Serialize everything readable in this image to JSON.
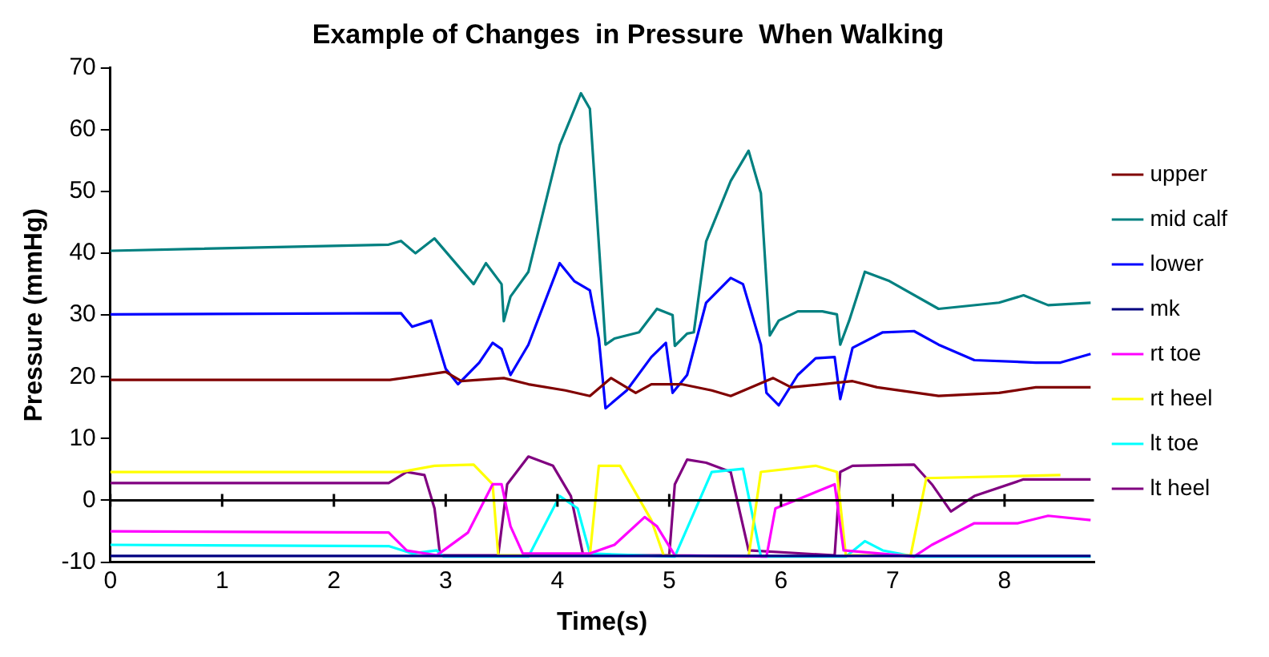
{
  "chart_data": {
    "type": "line",
    "title": "Example of Changes  in Pressure  When Walking",
    "xlabel": "Time(s)",
    "ylabel": "Pressure (mmHg)",
    "xlim": [
      0,
      8.8
    ],
    "xticks": [
      0,
      1,
      2,
      3,
      4,
      5,
      6,
      7,
      8
    ],
    "ylim": [
      -10,
      70
    ],
    "yticks": [
      -10,
      0,
      10,
      20,
      30,
      40,
      50,
      60,
      70
    ],
    "grid": false,
    "legend": "right",
    "marker": "none",
    "line_style": "solid",
    "ref_lines": [
      {
        "axis": "y",
        "value": 0
      }
    ],
    "series": [
      {
        "name": "upper",
        "color": "#800000",
        "x": [
          0,
          2.5,
          3.0,
          3.14,
          3.52,
          3.74,
          4.07,
          4.29,
          4.48,
          4.7,
          4.84,
          5.11,
          5.38,
          5.55,
          5.93,
          6.09,
          6.64,
          6.86,
          7.41,
          7.95,
          8.28,
          8.77
        ],
        "values": [
          19.5,
          19.5,
          20.8,
          19.3,
          19.8,
          18.8,
          17.8,
          16.9,
          19.8,
          17.4,
          18.8,
          18.8,
          17.8,
          16.9,
          19.8,
          18.3,
          19.3,
          18.3,
          16.9,
          17.4,
          18.3,
          18.3
        ]
      },
      {
        "name": "mid calf",
        "color": "#008080",
        "x": [
          0,
          2.49,
          2.6,
          2.73,
          2.9,
          3.25,
          3.36,
          3.5,
          3.52,
          3.58,
          3.74,
          4.02,
          4.21,
          4.29,
          4.43,
          4.51,
          4.73,
          4.89,
          5.03,
          5.05,
          5.16,
          5.22,
          5.33,
          5.55,
          5.71,
          5.82,
          5.9,
          5.98,
          6.15,
          6.37,
          6.5,
          6.53,
          6.61,
          6.75,
          6.97,
          7.41,
          7.95,
          8.17,
          8.39,
          8.77
        ],
        "values": [
          40.4,
          41.4,
          42,
          40,
          42.4,
          35,
          38.4,
          35,
          29,
          33,
          37,
          57.5,
          65.9,
          63.4,
          25.2,
          26.2,
          27.2,
          31,
          30,
          25,
          27,
          27.2,
          41.9,
          51.7,
          56.6,
          49.7,
          26.7,
          29.1,
          30.6,
          30.6,
          30.1,
          25.2,
          29.1,
          37,
          35.5,
          31,
          32,
          33.2,
          31.6,
          32
        ]
      },
      {
        "name": "lower",
        "color": "#0000ff",
        "x": [
          0,
          2.6,
          2.7,
          2.87,
          3.0,
          3.11,
          3.3,
          3.42,
          3.5,
          3.58,
          3.74,
          4.02,
          4.15,
          4.29,
          4.37,
          4.43,
          4.62,
          4.84,
          4.97,
          5.03,
          5.16,
          5.33,
          5.55,
          5.66,
          5.82,
          5.87,
          5.98,
          6.15,
          6.31,
          6.48,
          6.53,
          6.64,
          6.91,
          7.19,
          7.41,
          7.73,
          8.28,
          8.5,
          8.77
        ],
        "values": [
          30.1,
          30.3,
          28.1,
          29.1,
          21.3,
          18.8,
          22.3,
          25.5,
          24.5,
          20.3,
          25.2,
          38.4,
          35.5,
          34,
          26.2,
          14.9,
          17.8,
          23.2,
          25.5,
          17.4,
          20.3,
          32,
          36,
          35,
          25.2,
          17.4,
          15.4,
          20.3,
          23,
          23.2,
          16.4,
          24.7,
          27.2,
          27.4,
          25.2,
          22.7,
          22.3,
          22.3,
          23.7
        ]
      },
      {
        "name": "mk",
        "color": "#000080",
        "x": [
          0,
          8.77
        ],
        "values": [
          -9,
          -9
        ]
      },
      {
        "name": "rt toe",
        "color": "#ff00ff",
        "x": [
          0,
          2.49,
          2.65,
          2.92,
          3.2,
          3.42,
          3.5,
          3.58,
          3.69,
          4.29,
          4.51,
          4.78,
          4.89,
          5.05,
          5.87,
          5.95,
          6.09,
          6.48,
          6.56,
          7.19,
          7.35,
          7.73,
          8.12,
          8.39,
          8.77
        ],
        "values": [
          -5,
          -5.2,
          -8.1,
          -8.9,
          -5.2,
          2.6,
          2.6,
          -4.2,
          -8.6,
          -8.6,
          -7.2,
          -2.7,
          -4.2,
          -8.9,
          -9.1,
          -1.3,
          -0.3,
          2.6,
          -8.1,
          -9.1,
          -7.2,
          -3.7,
          -3.7,
          -2.5,
          -3.2
        ]
      },
      {
        "name": "rt heel",
        "color": "#ffff00",
        "x": [
          0,
          2.6,
          2.9,
          3.25,
          3.42,
          3.47,
          4.29,
          4.37,
          4.56,
          4.84,
          4.95,
          5.71,
          5.82,
          6.31,
          6.5,
          6.58,
          7.16,
          7.3,
          8.5
        ],
        "values": [
          4.6,
          4.6,
          5.6,
          5.8,
          2.6,
          -8.9,
          -8.9,
          5.6,
          5.6,
          -3.2,
          -8.9,
          -9.1,
          4.6,
          5.6,
          4.6,
          -8.9,
          -8.9,
          3.6,
          4.1
        ]
      },
      {
        "name": "lt toe",
        "color": "#00ffff",
        "x": [
          0,
          2.49,
          2.7,
          2.92,
          2.98,
          3.74,
          4.02,
          4.18,
          4.29,
          5.05,
          5.38,
          5.66,
          5.82,
          6.58,
          6.75,
          6.91,
          7.19,
          8.77
        ],
        "values": [
          -7.2,
          -7.4,
          -8.6,
          -8.1,
          -9.1,
          -9.1,
          0.7,
          -1.3,
          -8.6,
          -9.1,
          4.6,
          5.1,
          -9.1,
          -9.1,
          -6.6,
          -8.1,
          -9.1,
          -9.1
        ]
      },
      {
        "name": "lt heel",
        "color": "#800080",
        "x": [
          0,
          2.49,
          2.65,
          2.81,
          2.9,
          2.95,
          3.47,
          3.55,
          3.74,
          3.96,
          4.12,
          4.23,
          5.0,
          5.05,
          5.16,
          5.33,
          5.55,
          5.71,
          6.48,
          6.53,
          6.64,
          7.19,
          7.35,
          7.52,
          7.73,
          8.17,
          8.77
        ],
        "values": [
          2.8,
          2.8,
          4.6,
          4.1,
          -1.3,
          -8.9,
          -8.9,
          2.6,
          7.1,
          5.6,
          0.7,
          -8.9,
          -8.9,
          2.6,
          6.6,
          6.1,
          4.6,
          -8.1,
          -8.9,
          4.6,
          5.6,
          5.8,
          2.6,
          -1.8,
          0.7,
          3.4,
          3.4
        ]
      }
    ]
  }
}
